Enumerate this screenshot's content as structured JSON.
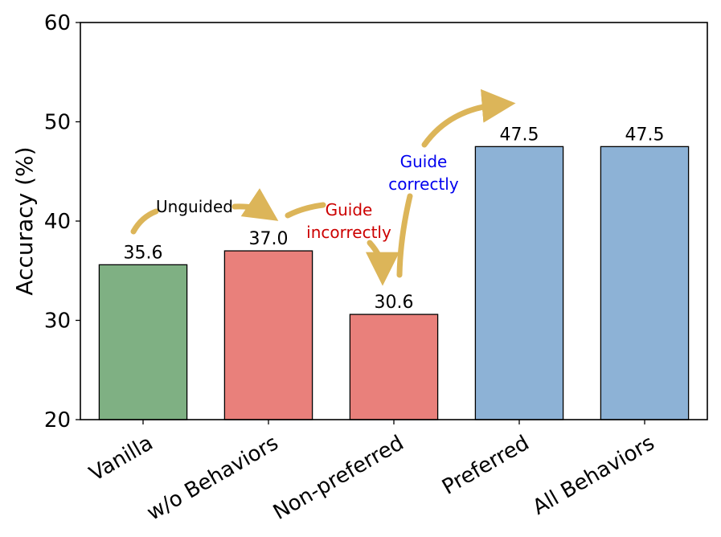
{
  "chart_data": {
    "type": "bar",
    "ylabel": "Accuracy (%)",
    "xlabel": "",
    "title": "",
    "ylim": [
      20,
      60
    ],
    "yticks": [
      20,
      30,
      40,
      50,
      60
    ],
    "grid": false,
    "categories": [
      "Vanilla",
      "w/o Behaviors",
      "Non-preferred",
      "Preferred",
      "All Behaviors"
    ],
    "values": [
      35.6,
      37.0,
      30.6,
      47.5,
      47.5
    ],
    "value_labels": [
      "35.6",
      "37.0",
      "30.6",
      "47.5",
      "47.5"
    ],
    "bar_colors": [
      "#7fb083",
      "#e9807b",
      "#e9807b",
      "#8db2d6",
      "#8db2d6"
    ],
    "annotations": [
      {
        "text": "Unguided",
        "color": "#000000"
      },
      {
        "text": "Guide\nincorrectly",
        "color": "#cc0000"
      },
      {
        "text": "Guide\ncorrectly",
        "color": "#0000ee"
      }
    ],
    "arrow_color": "#dcb559"
  }
}
